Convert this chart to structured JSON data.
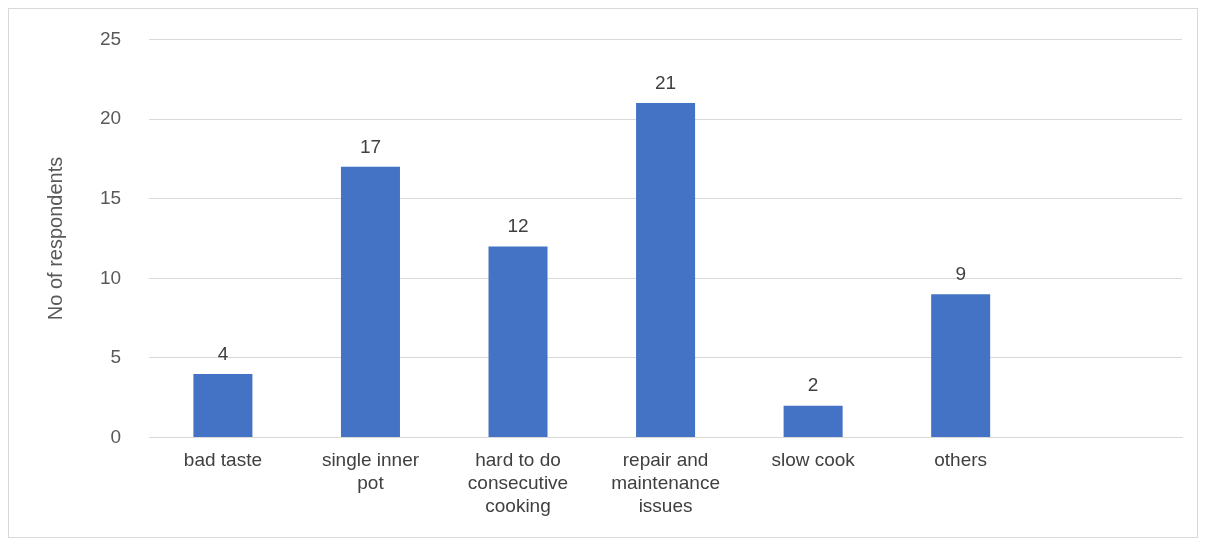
{
  "chart_data": {
    "type": "bar",
    "ylabel": "No of respondents",
    "categories": [
      "bad taste",
      "single inner pot",
      "hard to do consecutive cooking",
      "repair and maintenance issues",
      "slow cook",
      "others",
      null
    ],
    "values": [
      4,
      17,
      12,
      21,
      2,
      9,
      null
    ],
    "color": "#4472c4",
    "ylim": [
      0,
      25
    ],
    "yticks": [
      0,
      5,
      10,
      15,
      20,
      25
    ],
    "grid": "y",
    "data_labels": true,
    "legend": false
  }
}
